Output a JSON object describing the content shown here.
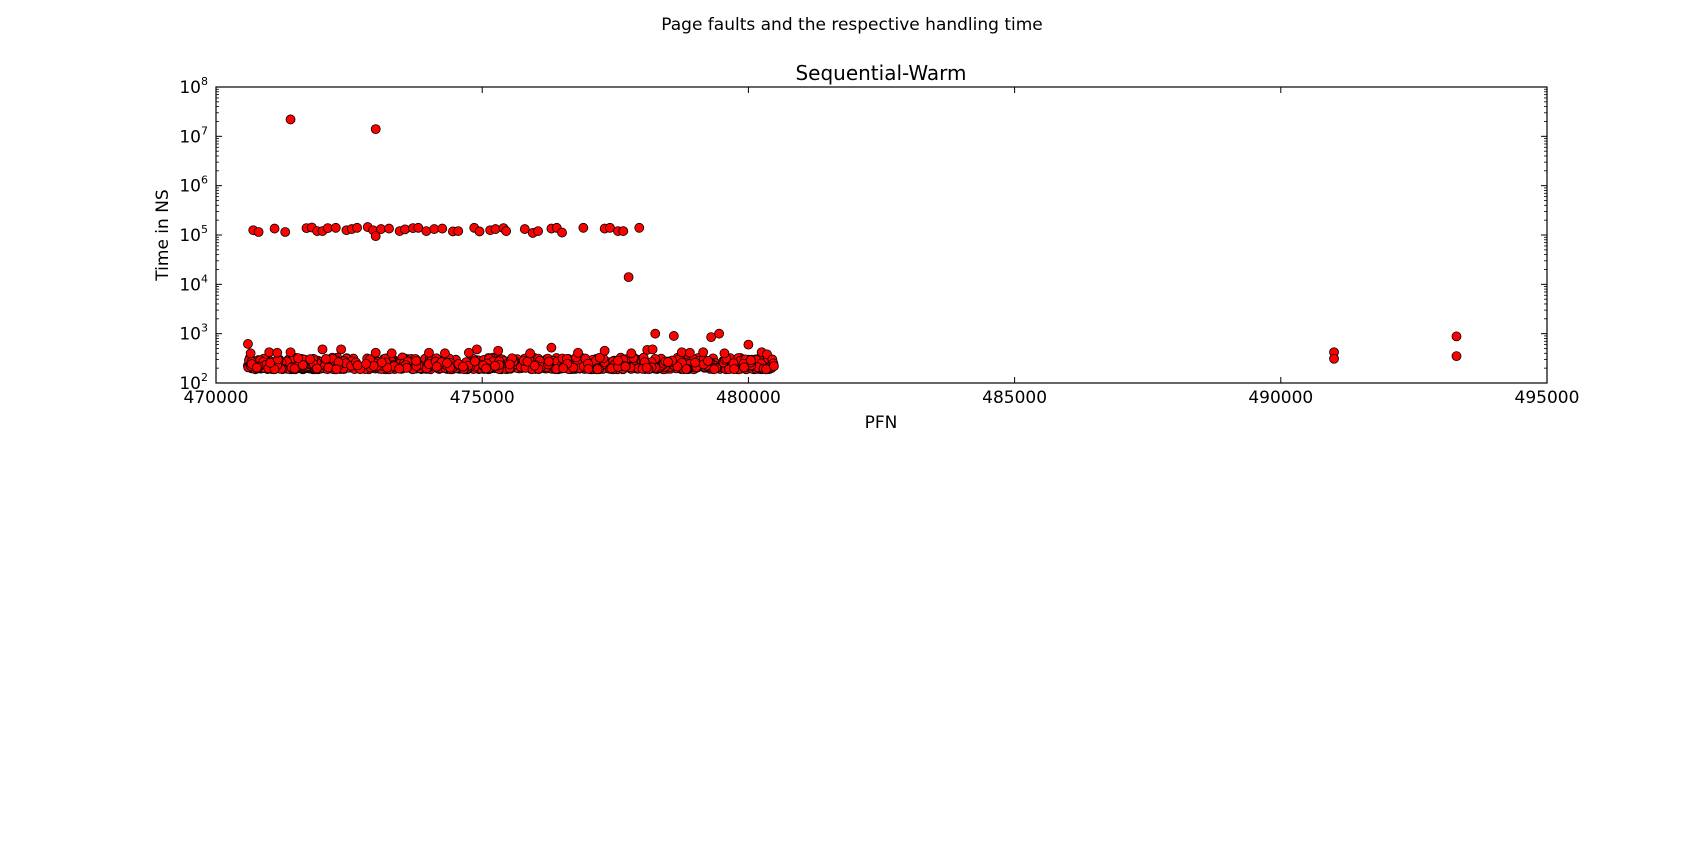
{
  "figure": {
    "suptitle": "Page faults and the respective handling time"
  },
  "chart_data": {
    "type": "scatter",
    "title": "Sequential-Warm",
    "xlabel": "PFN",
    "ylabel": "Time in NS",
    "xlim": [
      470000,
      495000
    ],
    "ylim": [
      100,
      100000000
    ],
    "yscale": "log",
    "grid": false,
    "legend": "none",
    "marker_color": "#ff0000",
    "marker_edge_color": "#000000",
    "x_ticks": [
      470000,
      475000,
      480000,
      485000,
      490000,
      495000
    ],
    "x_tick_labels": [
      "470000",
      "475000",
      "480000",
      "485000",
      "490000",
      "495000"
    ],
    "y_ticks": [
      {
        "value": 100,
        "base": "10",
        "exp": "2"
      },
      {
        "value": 1000,
        "base": "10",
        "exp": "3"
      },
      {
        "value": 10000,
        "base": "10",
        "exp": "4"
      },
      {
        "value": 100000,
        "base": "10",
        "exp": "5"
      },
      {
        "value": 1000000,
        "base": "10",
        "exp": "6"
      },
      {
        "value": 10000000,
        "base": "10",
        "exp": "7"
      },
      {
        "value": 100000000,
        "base": "10",
        "exp": "8"
      }
    ],
    "series": [
      {
        "points": [
          {
            "x": 471400,
            "y": 22000000
          },
          {
            "x": 473000,
            "y": 14000000
          },
          {
            "x": 470700,
            "y": 125000
          },
          {
            "x": 470800,
            "y": 115000
          },
          {
            "x": 471100,
            "y": 135000
          },
          {
            "x": 471300,
            "y": 115000
          },
          {
            "x": 471700,
            "y": 138000
          },
          {
            "x": 471800,
            "y": 142000
          },
          {
            "x": 471900,
            "y": 120000
          },
          {
            "x": 472000,
            "y": 120000
          },
          {
            "x": 472100,
            "y": 138000
          },
          {
            "x": 472250,
            "y": 140000
          },
          {
            "x": 472450,
            "y": 125000
          },
          {
            "x": 472550,
            "y": 132000
          },
          {
            "x": 472650,
            "y": 140000
          },
          {
            "x": 472850,
            "y": 145000
          },
          {
            "x": 472950,
            "y": 125000
          },
          {
            "x": 473000,
            "y": 95000
          },
          {
            "x": 473100,
            "y": 132000
          },
          {
            "x": 473250,
            "y": 135000
          },
          {
            "x": 473450,
            "y": 120000
          },
          {
            "x": 473550,
            "y": 130000
          },
          {
            "x": 473700,
            "y": 138000
          },
          {
            "x": 473800,
            "y": 140000
          },
          {
            "x": 473950,
            "y": 120000
          },
          {
            "x": 474100,
            "y": 132000
          },
          {
            "x": 474250,
            "y": 135000
          },
          {
            "x": 474450,
            "y": 118000
          },
          {
            "x": 474550,
            "y": 120000
          },
          {
            "x": 474850,
            "y": 140000
          },
          {
            "x": 474950,
            "y": 118000
          },
          {
            "x": 475150,
            "y": 125000
          },
          {
            "x": 475250,
            "y": 132000
          },
          {
            "x": 475400,
            "y": 138000
          },
          {
            "x": 475450,
            "y": 120000
          },
          {
            "x": 475800,
            "y": 132000
          },
          {
            "x": 475950,
            "y": 110000
          },
          {
            "x": 476050,
            "y": 120000
          },
          {
            "x": 476300,
            "y": 135000
          },
          {
            "x": 476400,
            "y": 140000
          },
          {
            "x": 476500,
            "y": 112000
          },
          {
            "x": 476900,
            "y": 140000
          },
          {
            "x": 477300,
            "y": 135000
          },
          {
            "x": 477400,
            "y": 140000
          },
          {
            "x": 477550,
            "y": 120000
          },
          {
            "x": 477650,
            "y": 120000
          },
          {
            "x": 477950,
            "y": 140000
          },
          {
            "x": 477750,
            "y": 14000
          },
          {
            "x": 478250,
            "y": 1000
          },
          {
            "x": 478600,
            "y": 900
          },
          {
            "x": 479300,
            "y": 850
          },
          {
            "x": 479450,
            "y": 1000
          },
          {
            "x": 480000,
            "y": 600
          },
          {
            "x": 470600,
            "y": 620
          },
          {
            "x": 472000,
            "y": 480
          },
          {
            "x": 472350,
            "y": 480
          },
          {
            "x": 474900,
            "y": 480
          },
          {
            "x": 475300,
            "y": 450
          },
          {
            "x": 476300,
            "y": 520
          },
          {
            "x": 477300,
            "y": 450
          },
          {
            "x": 478100,
            "y": 470
          },
          {
            "x": 478200,
            "y": 480
          },
          {
            "x": 478750,
            "y": 420
          },
          {
            "x": 479150,
            "y": 420
          },
          {
            "x": 480250,
            "y": 420
          },
          {
            "x": 470650,
            "y": 400
          },
          {
            "x": 471000,
            "y": 420
          },
          {
            "x": 471150,
            "y": 410
          },
          {
            "x": 471400,
            "y": 420
          },
          {
            "x": 473000,
            "y": 410
          },
          {
            "x": 473300,
            "y": 400
          },
          {
            "x": 474000,
            "y": 410
          },
          {
            "x": 474300,
            "y": 400
          },
          {
            "x": 474750,
            "y": 410
          },
          {
            "x": 475900,
            "y": 400
          },
          {
            "x": 476800,
            "y": 410
          },
          {
            "x": 477800,
            "y": 400
          },
          {
            "x": 478900,
            "y": 410
          },
          {
            "x": 479550,
            "y": 400
          },
          {
            "x": 480350,
            "y": 380
          },
          {
            "x": 480450,
            "y": 300
          },
          {
            "x": 480470,
            "y": 250
          },
          {
            "x": 480480,
            "y": 220
          },
          {
            "x": 491000,
            "y": 420
          },
          {
            "x": 491000,
            "y": 310
          },
          {
            "x": 493300,
            "y": 880
          },
          {
            "x": 493300,
            "y": 350
          }
        ],
        "dense_band": {
          "x_min": 470600,
          "x_max": 480450,
          "y_min": 190,
          "y_max": 330
        }
      }
    ]
  }
}
